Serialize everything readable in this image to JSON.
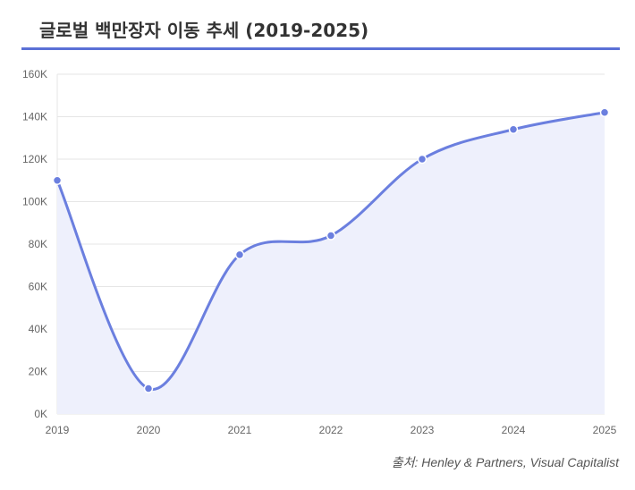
{
  "chart_data": {
    "type": "line",
    "title": "글로벌 백만장자 이동 추세 (2019-2025)",
    "xlabel": "",
    "ylabel": "",
    "categories": [
      "2019",
      "2020",
      "2021",
      "2022",
      "2023",
      "2024",
      "2025"
    ],
    "series": [
      {
        "values": [
          110000,
          12000,
          75000,
          84000,
          120000,
          134000,
          142000
        ]
      }
    ],
    "ylim": [
      0,
      160000
    ],
    "yticks": [
      "0K",
      "20K",
      "40K",
      "60K",
      "80K",
      "100K",
      "120K",
      "140K",
      "160K"
    ],
    "grid": true,
    "fill": true,
    "legend": "none",
    "colors": {
      "line": "#6b7fdf",
      "fill": "#eef0fc",
      "grid": "#e6e6e6",
      "rule": "#5b70d6"
    }
  },
  "source": "출처: Henley & Partners, Visual Capitalist"
}
